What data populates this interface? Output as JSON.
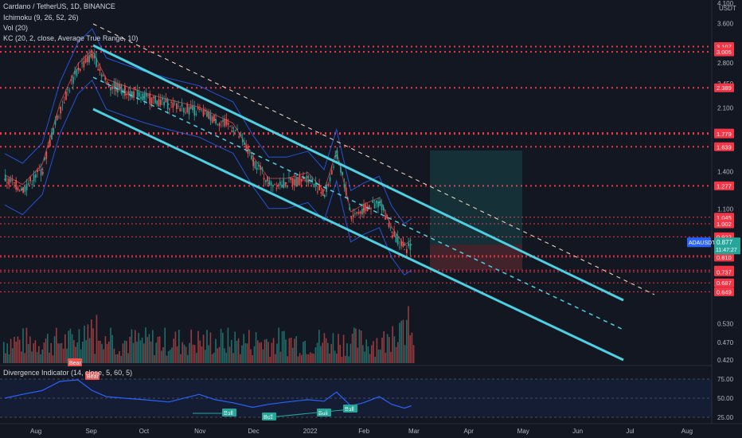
{
  "legend": {
    "symbol_line": "Cardano / TetherUS, 1D, BINANCE",
    "ichimoku": "Ichimoku (9, 26, 52, 26)",
    "volume": "Vol (20)",
    "keltner": "KC (20, 2, close, Average True Range, 10)"
  },
  "indicator_pane": {
    "title": "Divergence Indicator (14, close, 5, 60, 5)",
    "levels": [
      "75.00",
      "50.00",
      "25.00"
    ],
    "labels": [
      {
        "text": "Bear",
        "kind": "bear"
      },
      {
        "text": "Bear",
        "kind": "bear"
      },
      {
        "text": "Bull",
        "kind": "bull"
      },
      {
        "text": "Bull",
        "kind": "bull"
      },
      {
        "text": "Bull",
        "kind": "bull"
      },
      {
        "text": "Bull",
        "kind": "bull"
      }
    ]
  },
  "price_axis": {
    "currency": "USDT",
    "ticks": [
      "4.100",
      "3.600",
      "2.800",
      "2.450",
      "2.100",
      "1.400",
      "1.100",
      "0.530",
      "0.470",
      "0.420"
    ],
    "level_labels": [
      "3.107",
      "3.005",
      "2.389",
      "1.789",
      "1.779",
      "1.639",
      "1.277",
      "1.045",
      "1.002",
      "0.922",
      "0.817",
      "0.816",
      "0.810",
      "0.745",
      "0.737",
      "0.687",
      "0.649"
    ],
    "current_price": "0.877",
    "countdown": "11:47:27",
    "symbol_tag": "ADAUSDT"
  },
  "time_axis": [
    "Aug",
    "Sep",
    "Oct",
    "Nov",
    "Dec",
    "2022",
    "Feb",
    "Mar",
    "Apr",
    "May",
    "Jun",
    "Jul",
    "Aug"
  ],
  "colors": {
    "background": "#131722",
    "up": "#26a69a",
    "down": "#ef5350",
    "channel": "#4dd0e1",
    "level_line": "#f23645",
    "keltner": "#2962ff",
    "rsi": "#2962ff"
  },
  "chart_data": {
    "type": "line",
    "title": "Cardano / TetherUS, 1D, BINANCE",
    "xlabel": "",
    "ylabel": "USDT",
    "scale": "log",
    "ylim": [
      0.42,
      4.1
    ],
    "grid": false,
    "x": [
      "2021-07-15",
      "2021-07-25",
      "2021-08-05",
      "2021-08-15",
      "2021-08-25",
      "2021-09-02",
      "2021-09-10",
      "2021-09-20",
      "2021-10-01",
      "2021-10-15",
      "2021-11-01",
      "2021-11-10",
      "2021-11-20",
      "2021-12-01",
      "2021-12-10",
      "2021-12-20",
      "2022-01-01",
      "2022-01-10",
      "2022-01-17",
      "2022-01-25",
      "2022-02-01",
      "2022-02-10",
      "2022-02-17",
      "2022-02-24",
      "2022-02-28"
    ],
    "series": [
      {
        "name": "Cardano / TetherUS",
        "values": [
          1.33,
          1.25,
          1.42,
          2.1,
          2.7,
          2.95,
          2.45,
          2.35,
          2.25,
          2.15,
          2.05,
          1.95,
          1.85,
          1.5,
          1.3,
          1.3,
          1.35,
          1.2,
          1.55,
          1.05,
          1.1,
          1.15,
          0.95,
          0.85,
          0.877
        ]
      }
    ],
    "levels": [
      3.107,
      3.005,
      2.389,
      1.789,
      1.779,
      1.639,
      1.277,
      1.045,
      1.002,
      0.922,
      0.817,
      0.816,
      0.81,
      0.745,
      0.737,
      0.687,
      0.649
    ],
    "current_price": 0.877,
    "indicator": {
      "name": "Divergence Indicator (14, close, 5, 60, 5)",
      "ylim": [
        25,
        75
      ],
      "values": [
        50,
        55,
        60,
        72,
        74,
        60,
        52,
        50,
        48,
        45,
        55,
        48,
        44,
        38,
        42,
        45,
        48,
        46,
        58,
        40,
        44,
        52,
        42,
        37,
        40
      ]
    }
  }
}
